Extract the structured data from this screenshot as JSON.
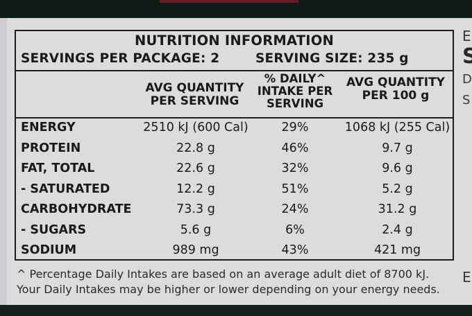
{
  "table": {
    "title": "NUTRITION INFORMATION",
    "servings_per_package": "SERVINGS PER PACKAGE: 2",
    "serving_size": "SERVING SIZE: 235 g",
    "col_headers": {
      "per_serving_l1": "AVG QUANTITY",
      "per_serving_l2": "PER SERVING",
      "daily_l1": "% DAILY^",
      "daily_l2": "INTAKE PER",
      "daily_l3": "SERVING",
      "per100_l1": "AVG QUANTITY",
      "per100_l2": "PER 100 g"
    },
    "rows": [
      {
        "label": "ENERGY",
        "per_serving": "2510 kJ (600 Cal)",
        "daily": "29%",
        "per_100g": "1068 kJ (255 Cal)"
      },
      {
        "label": "PROTEIN",
        "per_serving": "22.8 g",
        "daily": "46%",
        "per_100g": "9.7 g"
      },
      {
        "label": "FAT, TOTAL",
        "per_serving": "22.6 g",
        "daily": "32%",
        "per_100g": "9.6 g"
      },
      {
        "label": "- SATURATED",
        "per_serving": "12.2 g",
        "daily": "51%",
        "per_100g": "5.2 g"
      },
      {
        "label": "CARBOHYDRATE",
        "per_serving": "73.3 g",
        "daily": "24%",
        "per_100g": "31.2 g"
      },
      {
        "label": "- SUGARS",
        "per_serving": "5.6 g",
        "daily": "6%",
        "per_100g": "2.4 g"
      },
      {
        "label": "SODIUM",
        "per_serving": "989 mg",
        "daily": "43%",
        "per_100g": "421 mg"
      }
    ]
  },
  "footnote": {
    "line1": "^ Percentage Daily Intakes are based on an average adult diet of 8700 kJ.",
    "line2": "Your Daily Intakes may be higher or lower depending on your energy needs."
  },
  "side_fragments": [
    "E",
    "S",
    "D",
    "S",
    "E"
  ]
}
